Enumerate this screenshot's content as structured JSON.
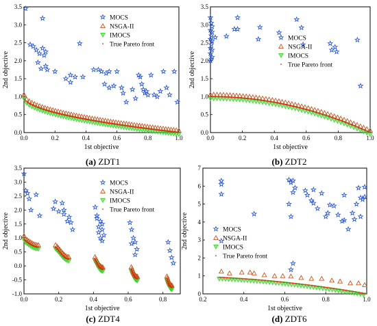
{
  "figure": {
    "panels": [
      {
        "id": "zdt1",
        "caption_label": "(a)",
        "caption_name": "ZDT1"
      },
      {
        "id": "zdt2",
        "caption_label": "(b)",
        "caption_name": "ZDT2"
      },
      {
        "id": "zdt4",
        "caption_label": "(c)",
        "caption_name": "ZDT4"
      },
      {
        "id": "zdt6",
        "caption_label": "(d)",
        "caption_name": "ZDT6"
      }
    ]
  },
  "styles": {
    "MOCS": {
      "color": "#2b59d6",
      "marker": "star"
    },
    "NSGA-II": {
      "color": "#c8531c",
      "marker": "triangle-up"
    },
    "IMOCS": {
      "color": "#39d629",
      "marker": "triangle-down"
    },
    "True Pareto front": {
      "color": "#e0201a",
      "marker": "dot"
    }
  },
  "chart_data": [
    {
      "id": "zdt1",
      "type": "scatter",
      "xlabel": "1st objective",
      "ylabel": "2nd objective",
      "xlim": [
        0,
        1.0
      ],
      "ylim": [
        0,
        3.5
      ],
      "xticks": [
        "0.0",
        "0.2",
        "0.4",
        "0.6",
        "0.8",
        "1.0"
      ],
      "yticks": [
        "0.0",
        "0.5",
        "1.0",
        "1.5",
        "2.0",
        "2.5",
        "3.0",
        "3.5"
      ],
      "legend": "top-right",
      "front": {
        "kind": "zdt1",
        "xmin": 0,
        "xmax": 1
      },
      "series": [
        {
          "name": "MOCS",
          "points": [
            [
              0.01,
              3.45
            ],
            [
              0.12,
              3.18
            ],
            [
              0.04,
              2.45
            ],
            [
              0.06,
              2.4
            ],
            [
              0.08,
              2.3
            ],
            [
              0.1,
              2.2
            ],
            [
              0.12,
              2.35
            ],
            [
              0.13,
              2.15
            ],
            [
              0.14,
              2.25
            ],
            [
              0.36,
              2.48
            ],
            [
              0.09,
              1.95
            ],
            [
              0.11,
              1.78
            ],
            [
              0.14,
              1.85
            ],
            [
              0.15,
              1.75
            ],
            [
              0.2,
              1.7
            ],
            [
              0.27,
              1.5
            ],
            [
              0.3,
              1.4
            ],
            [
              0.3,
              1.6
            ],
            [
              0.33,
              1.55
            ],
            [
              0.38,
              1.55
            ],
            [
              0.45,
              1.75
            ],
            [
              0.48,
              1.75
            ],
            [
              0.5,
              1.7
            ],
            [
              0.53,
              1.65
            ],
            [
              0.55,
              1.7
            ],
            [
              0.52,
              1.35
            ],
            [
              0.55,
              1.25
            ],
            [
              0.58,
              1.3
            ],
            [
              0.6,
              1.7
            ],
            [
              0.63,
              1.25
            ],
            [
              0.64,
              1.1
            ],
            [
              0.66,
              0.85
            ],
            [
              0.7,
              1.2
            ],
            [
              0.72,
              0.95
            ],
            [
              0.74,
              1.6
            ],
            [
              0.75,
              1.55
            ],
            [
              0.76,
              1.35
            ],
            [
              0.77,
              1.2
            ],
            [
              0.78,
              1.1
            ],
            [
              0.79,
              1.15
            ],
            [
              0.8,
              1.05
            ],
            [
              0.82,
              1.6
            ],
            [
              0.84,
              1.05
            ],
            [
              0.86,
              1.0
            ],
            [
              0.88,
              1.15
            ],
            [
              0.9,
              1.7
            ],
            [
              0.92,
              1.25
            ],
            [
              0.94,
              1.05
            ],
            [
              0.97,
              1.7
            ],
            [
              0.99,
              0.85
            ]
          ]
        },
        {
          "name": "NSGA-II",
          "kind": "zdt1",
          "count": 60,
          "dy": 0.06
        },
        {
          "name": "IMOCS",
          "kind": "zdt1",
          "count": 60,
          "dy": -0.05
        },
        {
          "name": "True Pareto front",
          "kind": "zdt1",
          "count": 120,
          "dy": 0
        }
      ]
    },
    {
      "id": "zdt2",
      "type": "scatter",
      "xlabel": "1st objective",
      "ylabel": "2nd objective",
      "xlim": [
        0,
        1.0
      ],
      "ylim": [
        0,
        3.5
      ],
      "xticks": [
        "0.0",
        "0.2",
        "0.4",
        "0.6",
        "0.8",
        "1.0"
      ],
      "yticks": [
        "0.0",
        "0.5",
        "1.0",
        "1.5",
        "2.0",
        "2.5",
        "3.0",
        "3.5"
      ],
      "legend": "top-right",
      "front": {
        "kind": "zdt2",
        "xmin": 0,
        "xmax": 1
      },
      "series": [
        {
          "name": "MOCS",
          "points": [
            [
              0.0,
              3.2
            ],
            [
              0.005,
              3.05
            ],
            [
              0.01,
              2.95
            ],
            [
              0.0,
              2.85
            ],
            [
              0.01,
              2.8
            ],
            [
              0.005,
              2.7
            ],
            [
              0.0,
              2.6
            ],
            [
              0.01,
              2.55
            ],
            [
              0.005,
              2.45
            ],
            [
              0.0,
              2.35
            ],
            [
              0.01,
              2.3
            ],
            [
              0.0,
              2.2
            ],
            [
              0.01,
              2.1
            ],
            [
              0.005,
              2.05
            ],
            [
              0.0,
              2.0
            ],
            [
              0.03,
              2.65
            ],
            [
              0.1,
              2.68
            ],
            [
              0.15,
              2.88
            ],
            [
              0.17,
              2.88
            ],
            [
              0.17,
              3.2
            ],
            [
              0.31,
              2.93
            ],
            [
              0.3,
              2.6
            ],
            [
              0.43,
              2.78
            ],
            [
              0.54,
              3.15
            ],
            [
              0.57,
              2.92
            ],
            [
              0.58,
              2.45
            ],
            [
              0.75,
              2.48
            ],
            [
              0.76,
              2.3
            ],
            [
              0.78,
              2.38
            ],
            [
              0.79,
              2.25
            ],
            [
              0.92,
              2.58
            ],
            [
              0.94,
              1.3
            ]
          ]
        },
        {
          "name": "NSGA-II",
          "kind": "zdt2",
          "count": 50,
          "dy": 0.06
        },
        {
          "name": "IMOCS",
          "kind": "zdt2",
          "count": 50,
          "dy": -0.05
        },
        {
          "name": "True Pareto front",
          "kind": "zdt2",
          "count": 120,
          "dy": 0
        }
      ]
    },
    {
      "id": "zdt4",
      "type": "scatter",
      "xlabel": "1st objective",
      "ylabel": "2nd objective",
      "xlim": [
        0,
        0.9
      ],
      "ylim": [
        -1.0,
        3.5
      ],
      "xticks": [
        "0.0",
        "0.2",
        "0.4",
        "0.6",
        "0.8"
      ],
      "yticks": [
        "-1.0",
        "-0.5",
        "0.0",
        "0.5",
        "1.0",
        "1.5",
        "2.0",
        "2.5",
        "3.0",
        "3.5"
      ],
      "legend": "top-right",
      "front": {
        "kind": "zdt3",
        "segments": [
          [
            0.0,
            0.083
          ],
          [
            0.182,
            0.258
          ],
          [
            0.409,
            0.454
          ],
          [
            0.618,
            0.653
          ],
          [
            0.823,
            0.852
          ]
        ]
      },
      "series": [
        {
          "name": "MOCS",
          "points": [
            [
              0.0,
              3.3
            ],
            [
              0.01,
              2.7
            ],
            [
              0.02,
              2.6
            ],
            [
              0.03,
              2.4
            ],
            [
              0.04,
              2.0
            ],
            [
              0.07,
              2.55
            ],
            [
              0.09,
              1.8
            ],
            [
              0.17,
              2.05
            ],
            [
              0.18,
              2.3
            ],
            [
              0.2,
              1.95
            ],
            [
              0.22,
              2.25
            ],
            [
              0.23,
              1.85
            ],
            [
              0.23,
              2.0
            ],
            [
              0.25,
              1.6
            ],
            [
              0.26,
              1.75
            ],
            [
              0.27,
              1.55
            ],
            [
              0.28,
              1.3
            ],
            [
              0.41,
              2.1
            ],
            [
              0.42,
              1.8
            ],
            [
              0.43,
              1.4
            ],
            [
              0.44,
              1.6
            ],
            [
              0.45,
              1.5
            ],
            [
              0.43,
              1.2
            ],
            [
              0.44,
              1.0
            ],
            [
              0.45,
              0.9
            ],
            [
              0.46,
              1.1
            ],
            [
              0.42,
              1.7
            ],
            [
              0.45,
              1.3
            ],
            [
              0.61,
              1.55
            ],
            [
              0.62,
              1.3
            ],
            [
              0.63,
              1.0
            ],
            [
              0.64,
              0.85
            ],
            [
              0.65,
              0.6
            ],
            [
              0.62,
              0.8
            ],
            [
              0.64,
              0.4
            ],
            [
              0.83,
              0.85
            ],
            [
              0.84,
              0.55
            ],
            [
              0.85,
              0.3
            ],
            [
              0.86,
              0.1
            ]
          ]
        },
        {
          "name": "NSGA-II",
          "kind": "zdt3",
          "count": 10,
          "dy": 0.08
        },
        {
          "name": "IMOCS",
          "kind": "zdt3",
          "count": 10,
          "dy": -0.06
        },
        {
          "name": "True Pareto front",
          "kind": "zdt3",
          "count": 20,
          "dy": 0
        }
      ]
    },
    {
      "id": "zdt6",
      "type": "scatter",
      "xlabel": "1st objective",
      "ylabel": "2nd objective",
      "xlim": [
        0.2,
        1.0
      ],
      "ylim": [
        0,
        7
      ],
      "xticks": [
        "0.2",
        "0.4",
        "0.6",
        "0.8",
        "1.0"
      ],
      "yticks": [
        "0",
        "1",
        "2",
        "3",
        "4",
        "5",
        "6",
        "7"
      ],
      "legend": "center-left",
      "front": {
        "kind": "zdt6",
        "xmin": 0.28,
        "xmax": 1.0
      },
      "series": [
        {
          "name": "MOCS",
          "points": [
            [
              0.29,
              6.3
            ],
            [
              0.29,
              6.1
            ],
            [
              0.29,
              5.55
            ],
            [
              0.29,
              2.95
            ],
            [
              0.45,
              4.45
            ],
            [
              0.62,
              6.35
            ],
            [
              0.63,
              6.2
            ],
            [
              0.64,
              6.3
            ],
            [
              0.65,
              5.9
            ],
            [
              0.64,
              5.65
            ],
            [
              0.62,
              5.0
            ],
            [
              0.63,
              4.3
            ],
            [
              0.64,
              1.7
            ],
            [
              0.63,
              1.35
            ],
            [
              0.7,
              5.75
            ],
            [
              0.71,
              5.5
            ],
            [
              0.73,
              5.2
            ],
            [
              0.74,
              5.05
            ],
            [
              0.74,
              5.8
            ],
            [
              0.76,
              4.75
            ],
            [
              0.78,
              5.6
            ],
            [
              0.8,
              4.3
            ],
            [
              0.81,
              4.5
            ],
            [
              0.82,
              4.95
            ],
            [
              0.84,
              4.9
            ],
            [
              0.86,
              4.4
            ],
            [
              0.88,
              4.05
            ],
            [
              0.89,
              4.1
            ],
            [
              0.89,
              5.5
            ],
            [
              0.91,
              3.6
            ],
            [
              0.93,
              4.5
            ],
            [
              0.94,
              4.15
            ],
            [
              0.95,
              5.0
            ],
            [
              0.96,
              5.9
            ],
            [
              0.97,
              5.35
            ],
            [
              0.98,
              5.25
            ],
            [
              0.99,
              5.4
            ],
            [
              0.99,
              5.95
            ],
            [
              0.97,
              4.3
            ]
          ]
        },
        {
          "name": "NSGA-II",
          "points": [
            [
              0.29,
              1.25
            ],
            [
              0.33,
              1.15
            ],
            [
              0.39,
              1.2
            ],
            [
              0.43,
              1.2
            ],
            [
              0.45,
              1.15
            ],
            [
              0.5,
              1.05
            ],
            [
              0.55,
              1.0
            ],
            [
              0.59,
              1.0
            ],
            [
              0.63,
              0.98
            ],
            [
              0.68,
              0.9
            ],
            [
              0.73,
              0.85
            ],
            [
              0.78,
              0.85
            ],
            [
              0.83,
              0.75
            ],
            [
              0.87,
              0.7
            ],
            [
              0.92,
              0.6
            ],
            [
              0.96,
              0.6
            ],
            [
              0.99,
              0.5
            ]
          ]
        },
        {
          "name": "IMOCS",
          "kind": "zdt6",
          "count": 48,
          "dy": -0.08
        },
        {
          "name": "True Pareto front",
          "kind": "zdt6",
          "count": 100,
          "dy": 0
        }
      ]
    }
  ]
}
